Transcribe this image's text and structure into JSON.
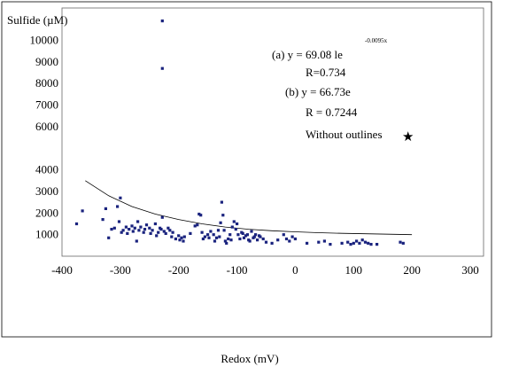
{
  "chart_data": {
    "type": "scatter",
    "ylabel": "Sulfide (µM)",
    "xlabel": "Redox (mV)",
    "xlim": [
      -400,
      300
    ],
    "ylim": [
      0,
      11500
    ],
    "x_ticks": [
      -400,
      -300,
      -200,
      -100,
      0,
      100,
      200,
      300
    ],
    "x_tick_labels": [
      "-400",
      "-300",
      "-200",
      "-100",
      "0",
      "100",
      "200",
      "300"
    ],
    "y_ticks": [
      1000,
      2000,
      3000,
      4000,
      6000,
      7000,
      8000,
      9000,
      10000
    ],
    "y_tick_labels": [
      "1000",
      "2000",
      "3000",
      "4000",
      "6000",
      "7000",
      "8000",
      "9000",
      "10000"
    ],
    "grid": false,
    "marker_color": "#1a237e",
    "annotations": {
      "eq_a": "(a) y = 69.08 le",
      "eq_a_exponent": "-0.0095x",
      "r_a": "R=0.734",
      "eq_b": "(b) y = 66.73e",
      "r_b": "R = 0.7244",
      "without_outlines": "Without outlines",
      "star": "★"
    },
    "fit_curve": {
      "x": [
        -360,
        -320,
        -280,
        -240,
        -200,
        -160,
        -120,
        -80,
        -40,
        0,
        40,
        80,
        120,
        160,
        200
      ],
      "y": [
        3500,
        2800,
        2300,
        1950,
        1700,
        1500,
        1350,
        1250,
        1180,
        1130,
        1090,
        1060,
        1040,
        1020,
        1000
      ]
    },
    "series": [
      {
        "points": [
          [
            -375,
            1500
          ],
          [
            -365,
            2100
          ],
          [
            -330,
            1700
          ],
          [
            -325,
            2200
          ],
          [
            -320,
            850
          ],
          [
            -315,
            1250
          ],
          [
            -310,
            1300
          ],
          [
            -305,
            2300
          ],
          [
            -302,
            1600
          ],
          [
            -300,
            2700
          ],
          [
            -298,
            1100
          ],
          [
            -295,
            1200
          ],
          [
            -290,
            1350
          ],
          [
            -288,
            1050
          ],
          [
            -285,
            1250
          ],
          [
            -280,
            1400
          ],
          [
            -278,
            1150
          ],
          [
            -275,
            1300
          ],
          [
            -272,
            700
          ],
          [
            -270,
            1600
          ],
          [
            -268,
            1200
          ],
          [
            -265,
            1350
          ],
          [
            -260,
            1100
          ],
          [
            -258,
            1250
          ],
          [
            -255,
            1450
          ],
          [
            -250,
            1300
          ],
          [
            -248,
            1050
          ],
          [
            -245,
            1200
          ],
          [
            -240,
            1500
          ],
          [
            -238,
            950
          ],
          [
            -235,
            1100
          ],
          [
            -232,
            1300
          ],
          [
            -230,
            1250
          ],
          [
            -228,
            1800
          ],
          [
            -225,
            1150
          ],
          [
            -222,
            1050
          ],
          [
            -218,
            1300
          ],
          [
            -215,
            1200
          ],
          [
            -212,
            900
          ],
          [
            -210,
            1100
          ],
          [
            -205,
            800
          ],
          [
            -200,
            950
          ],
          [
            -198,
            750
          ],
          [
            -195,
            850
          ],
          [
            -192,
            700
          ],
          [
            -190,
            900
          ],
          [
            -180,
            1050
          ],
          [
            -172,
            1400
          ],
          [
            -168,
            1450
          ],
          [
            -165,
            1950
          ],
          [
            -162,
            1900
          ],
          [
            -160,
            1100
          ],
          [
            -158,
            800
          ],
          [
            -155,
            900
          ],
          [
            -150,
            1000
          ],
          [
            -148,
            850
          ],
          [
            -145,
            1150
          ],
          [
            -140,
            1000
          ],
          [
            -138,
            700
          ],
          [
            -135,
            850
          ],
          [
            -132,
            1200
          ],
          [
            -130,
            900
          ],
          [
            -128,
            1550
          ],
          [
            -126,
            2500
          ],
          [
            -124,
            1900
          ],
          [
            -122,
            1200
          ],
          [
            -120,
            700
          ],
          [
            -118,
            600
          ],
          [
            -115,
            800
          ],
          [
            -112,
            1000
          ],
          [
            -110,
            750
          ],
          [
            -108,
            1350
          ],
          [
            -105,
            1600
          ],
          [
            -102,
            1250
          ],
          [
            -100,
            1500
          ],
          [
            -98,
            1000
          ],
          [
            -95,
            800
          ],
          [
            -92,
            1100
          ],
          [
            -90,
            1050
          ],
          [
            -88,
            850
          ],
          [
            -85,
            950
          ],
          [
            -82,
            1000
          ],
          [
            -80,
            750
          ],
          [
            -78,
            700
          ],
          [
            -75,
            1150
          ],
          [
            -72,
            850
          ],
          [
            -70,
            900
          ],
          [
            -68,
            1000
          ],
          [
            -65,
            750
          ],
          [
            -62,
            950
          ],
          [
            -60,
            900
          ],
          [
            -55,
            800
          ],
          [
            -50,
            650
          ],
          [
            -40,
            600
          ],
          [
            -30,
            750
          ],
          [
            -20,
            1000
          ],
          [
            -15,
            800
          ],
          [
            -10,
            700
          ],
          [
            -5,
            900
          ],
          [
            0,
            800
          ],
          [
            20,
            600
          ],
          [
            40,
            650
          ],
          [
            50,
            700
          ],
          [
            60,
            550
          ],
          [
            80,
            600
          ],
          [
            90,
            650
          ],
          [
            95,
            550
          ],
          [
            100,
            600
          ],
          [
            105,
            700
          ],
          [
            110,
            600
          ],
          [
            115,
            750
          ],
          [
            120,
            650
          ],
          [
            125,
            600
          ],
          [
            130,
            550
          ],
          [
            140,
            550
          ],
          [
            180,
            650
          ],
          [
            185,
            600
          ],
          [
            -228,
            10900
          ],
          [
            -228,
            8700
          ]
        ]
      }
    ]
  }
}
